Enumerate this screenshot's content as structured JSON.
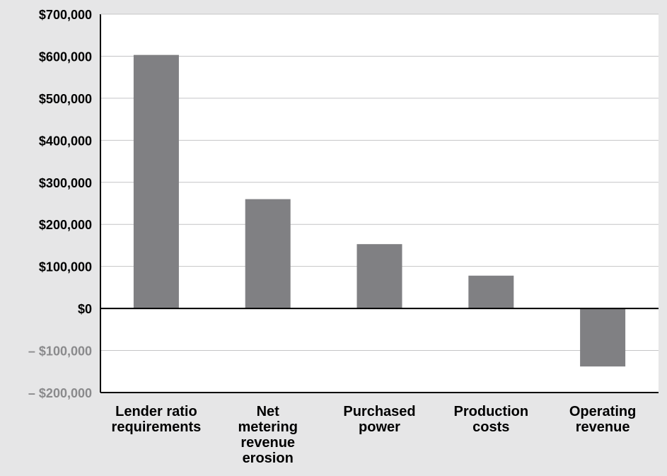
{
  "chart_data": {
    "type": "bar",
    "categories": [
      [
        "Lender ratio",
        "requirements"
      ],
      [
        "Net",
        "metering",
        "revenue",
        "erosion"
      ],
      [
        "Purchased",
        "power"
      ],
      [
        "Production",
        "costs"
      ],
      [
        "Operating",
        "revenue"
      ]
    ],
    "values": [
      603000,
      260000,
      153000,
      78000,
      -138000
    ],
    "ylim": [
      -200000,
      700000
    ],
    "yticks": [
      700000,
      600000,
      500000,
      400000,
      300000,
      200000,
      100000,
      0,
      -100000,
      -200000
    ],
    "ytick_labels": [
      "$700,000",
      "$600,000",
      "$500,000",
      "$400,000",
      "$300,000",
      "$200,000",
      "$100,000",
      "$0",
      "– $100,000",
      "– $200,000"
    ],
    "grid": true,
    "title": "",
    "xlabel": "",
    "ylabel": ""
  },
  "colors": {
    "background": "#e6e6e7",
    "plot_background": "#ffffff",
    "bar": "#808083",
    "gridline": "#c4c4c6",
    "axis": "#000000",
    "positive_label": "#000000",
    "negative_label": "#8a8a8c"
  }
}
